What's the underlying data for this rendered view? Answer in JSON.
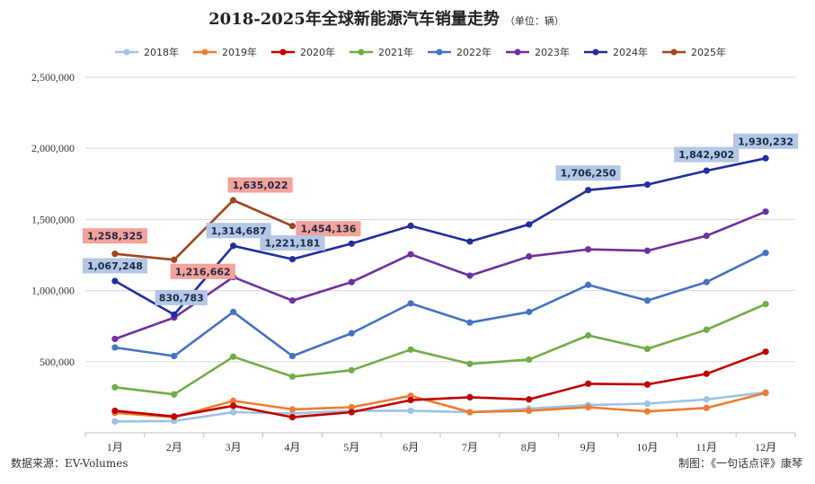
{
  "chart_data": {
    "type": "line",
    "title": "2018-2025年全球新能源汽车销量走势",
    "subtitle": "（单位：辆）",
    "categories": [
      "1月",
      "2月",
      "3月",
      "4月",
      "5月",
      "6月",
      "7月",
      "8月",
      "9月",
      "10月",
      "11月",
      "12月"
    ],
    "ylim": [
      0,
      2500000
    ],
    "yticks": [
      "",
      "500,000",
      "1,000,000",
      "1,500,000",
      "2,000,000",
      "2,500,000"
    ],
    "grid": true,
    "legend_position": "top",
    "series": [
      {
        "name": "2018年",
        "color": "#9dc3e6",
        "values": [
          80000,
          83000,
          145000,
          135000,
          155000,
          155000,
          145000,
          170000,
          195000,
          205000,
          235000,
          285000
        ]
      },
      {
        "name": "2019年",
        "color": "#ed7d31",
        "values": [
          140000,
          110000,
          225000,
          165000,
          180000,
          260000,
          145000,
          155000,
          180000,
          150000,
          175000,
          280000
        ]
      },
      {
        "name": "2020年",
        "color": "#c00000",
        "values": [
          155000,
          115000,
          190000,
          110000,
          145000,
          230000,
          250000,
          235000,
          345000,
          340000,
          415000,
          570000
        ]
      },
      {
        "name": "2021年",
        "color": "#70ad47",
        "values": [
          320000,
          270000,
          535000,
          395000,
          440000,
          585000,
          485000,
          515000,
          685000,
          590000,
          725000,
          905000
        ]
      },
      {
        "name": "2022年",
        "color": "#4472c4",
        "values": [
          600000,
          540000,
          850000,
          540000,
          700000,
          910000,
          775000,
          850000,
          1040000,
          930000,
          1060000,
          1265000
        ]
      },
      {
        "name": "2023年",
        "color": "#7030a0",
        "values": [
          660000,
          810000,
          1095000,
          930000,
          1060000,
          1255000,
          1105000,
          1240000,
          1290000,
          1280000,
          1385000,
          1555000
        ]
      },
      {
        "name": "2024年",
        "color": "#1f2f9e",
        "values": [
          1067248,
          830783,
          1314687,
          1221181,
          1330000,
          1455000,
          1345000,
          1465000,
          1706250,
          1745000,
          1842902,
          1930232
        ]
      },
      {
        "name": "2025年",
        "color": "#a0461e",
        "values": [
          1258325,
          1216662,
          1635022,
          1454136,
          null,
          null,
          null,
          null,
          null,
          null,
          null,
          null
        ]
      }
    ],
    "data_labels": [
      {
        "text": "1,258,325",
        "series": "2025年",
        "index": 0,
        "bg": "#f4a29a"
      },
      {
        "text": "1,216,662",
        "series": "2025年",
        "index": 1,
        "bg": "#f4a29a"
      },
      {
        "text": "1,635,022",
        "series": "2025年",
        "index": 2,
        "bg": "#f4a29a"
      },
      {
        "text": "1,454,136",
        "series": "2025年",
        "index": 3,
        "bg": "#f4a29a"
      },
      {
        "text": "1,067,248",
        "series": "2024年",
        "index": 0,
        "bg": "#b4c7e7"
      },
      {
        "text": "830,783",
        "series": "2024年",
        "index": 1,
        "bg": "#b4c7e7"
      },
      {
        "text": "1,314,687",
        "series": "2024年",
        "index": 2,
        "bg": "#b4c7e7"
      },
      {
        "text": "1,221,181",
        "series": "2024年",
        "index": 3,
        "bg": "#b4c7e7"
      },
      {
        "text": "1,706,250",
        "series": "2024年",
        "index": 8,
        "bg": "#b4c7e7"
      },
      {
        "text": "1,842,902",
        "series": "2024年",
        "index": 10,
        "bg": "#b4c7e7"
      },
      {
        "text": "1,930,232",
        "series": "2024年",
        "index": 11,
        "bg": "#b4c7e7"
      }
    ]
  },
  "footer": {
    "source": "数据来源：EV-Volumes",
    "credit": "制图：《一句话点评》康琴"
  }
}
